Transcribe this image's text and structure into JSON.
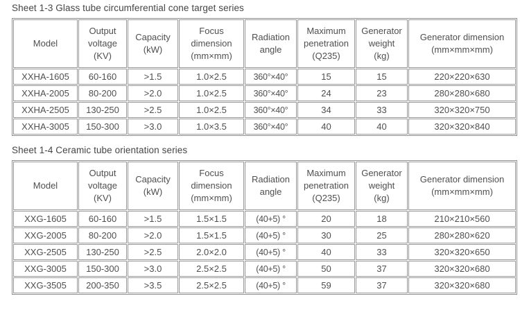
{
  "colors": {
    "text": "#4f4f4f",
    "title": "#454545",
    "border": "#8f8f8f",
    "background": "#ffffff"
  },
  "tables": [
    {
      "title": "Sheet 1-3 Glass tube circumferential cone target series",
      "columns": [
        "Model",
        "Output\nvoltage\n(KV)",
        "Capacity\n(kW)",
        "Focus\ndimension\n(mm×mm)",
        "Radiation\nangle",
        "Maximum\npenetration\n(Q235)",
        "Generator\nweight\n(kg)",
        "Generator dimension\n(mm×mm×mm)"
      ],
      "rows": [
        [
          "XXHA-1605",
          "60-160",
          ">1.5",
          "1.0×2.5",
          "360°×40°",
          "15",
          "15",
          "220×220×630"
        ],
        [
          "XXHA-2005",
          "80-200",
          ">2.0",
          "1.0×2.5",
          "360°×40°",
          "24",
          "23",
          "280×280×680"
        ],
        [
          "XXHA-2505",
          "130-250",
          ">2.5",
          "1.0×2.5",
          "360°×40°",
          "34",
          "33",
          "320×320×750"
        ],
        [
          "XXHA-3005",
          "150-300",
          ">3.0",
          "1.0×3.5",
          "360°×40°",
          "40",
          "40",
          "320×320×840"
        ]
      ]
    },
    {
      "title": "Sheet 1-4 Ceramic tube orientation series",
      "columns": [
        "Model",
        "Output\nvoltage\n(KV)",
        "Capacity\n(kW)",
        "Focus\ndimension\n(mm×mm)",
        "Radiation\nangle",
        "Maximum\npenetration\n(Q235)",
        "Generator\nweight\n(kg)",
        "Generator dimension\n(mm×mm×mm)"
      ],
      "rows": [
        [
          "XXG-1605",
          "60-160",
          ">1.5",
          "1.5×1.5",
          "(40+5) °",
          "20",
          "18",
          "210×210×560"
        ],
        [
          "XXG-2005",
          "80-200",
          ">2.0",
          "1.5×1.5",
          "(40+5) °",
          "30",
          "25",
          "280×280×620"
        ],
        [
          "XXG-2505",
          "130-250",
          ">2.5",
          "2.0×2.0",
          "(40+5) °",
          "40",
          "33",
          "320×320×650"
        ],
        [
          "XXG-3005",
          "150-300",
          ">3.0",
          "2.5×2.5",
          "(40+5) °",
          "50",
          "37",
          "320×320×680"
        ],
        [
          "XXG-3505",
          "200-350",
          ">3.5",
          "2.5×2.5",
          "(40+5) °",
          "59",
          "37",
          "320×320×680"
        ]
      ]
    }
  ]
}
